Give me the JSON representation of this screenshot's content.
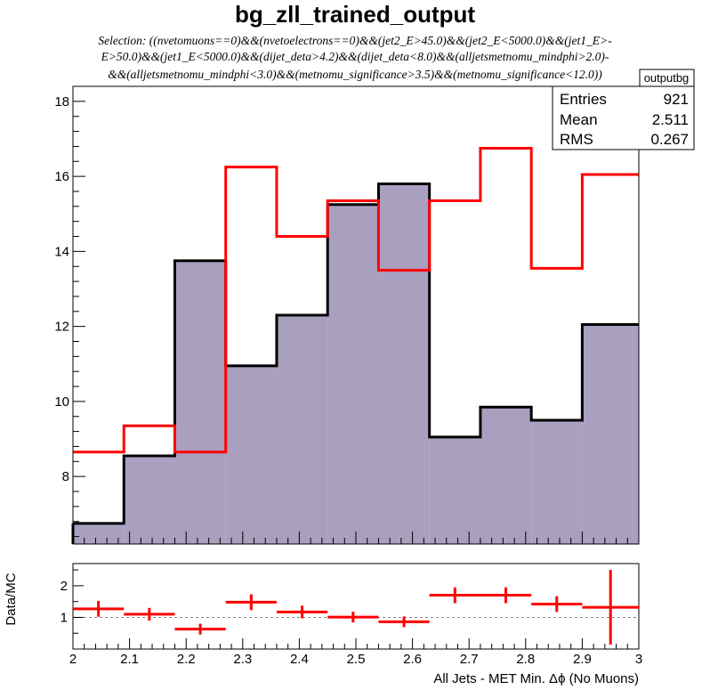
{
  "title": "bg_zll_trained_output",
  "selection": [
    "Selection: ((nvetomuons==0)&&(nvetoelectrons==0)&&(jet2_E>45.0)&&(jet2_E<5000.0)&&(jet1_E>-",
    "E>50.0)&&(jet1_E<5000.0)&&(dijet_deta>4.2)&&(dijet_deta<8.0)&&(alljetsmetnomu_mindphi>2.0)-",
    "&&(alljetsmetnomu_mindphi<3.0)&&(metnomu_significance>3.5)&&(metnomu_significance<12.0))"
  ],
  "stats_box": {
    "name": "outputbg",
    "rows": [
      {
        "label": "Entries",
        "value": "921"
      },
      {
        "label": "Mean",
        "value": "2.511"
      },
      {
        "label": "RMS",
        "value": "0.267"
      }
    ]
  },
  "ratio_ylabel": "Data/MC",
  "xlabel": "All Jets - MET Min. Δϕ (No Muons)",
  "colors": {
    "fill": "#a99fbf",
    "mc_line": "#000000",
    "data_line": "#ff0000",
    "ref_line": "#888888"
  },
  "chart_data": [
    {
      "type": "histogram",
      "panel": "main",
      "xlim": [
        2.0,
        3.0
      ],
      "ylim": [
        6.2,
        18.4
      ],
      "yticks": [
        8,
        10,
        12,
        14,
        16,
        18
      ],
      "bin_edges": [
        2.0,
        2.09,
        2.18,
        2.27,
        2.36,
        2.45,
        2.54,
        2.63,
        2.72,
        2.81,
        2.9,
        3.0
      ],
      "series": [
        {
          "values": [
            6.75,
            8.55,
            13.75,
            10.95,
            12.3,
            15.25,
            15.8,
            9.05,
            9.85,
            9.5,
            12.05
          ],
          "style": "filled"
        },
        {
          "values": [
            8.65,
            9.35,
            8.65,
            16.25,
            14.4,
            15.35,
            13.5,
            15.35,
            16.75,
            13.55,
            16.05
          ],
          "style": "line"
        }
      ]
    },
    {
      "type": "scatter",
      "panel": "ratio",
      "xlim": [
        2.0,
        3.0
      ],
      "ylim": [
        0,
        2.7
      ],
      "yticks": [
        1,
        2
      ],
      "xticks": [
        2,
        2.1,
        2.2,
        2.3,
        2.4,
        2.5,
        2.6,
        2.7,
        2.8,
        2.9,
        3
      ],
      "reference_line": 1,
      "points": [
        {
          "x": 2.045,
          "y": 1.27,
          "xerr": 0.045,
          "yerr": 0.25
        },
        {
          "x": 2.135,
          "y": 1.1,
          "xerr": 0.045,
          "yerr": 0.2
        },
        {
          "x": 2.225,
          "y": 0.63,
          "xerr": 0.045,
          "yerr": 0.17
        },
        {
          "x": 2.315,
          "y": 1.48,
          "xerr": 0.045,
          "yerr": 0.25
        },
        {
          "x": 2.405,
          "y": 1.17,
          "xerr": 0.045,
          "yerr": 0.2
        },
        {
          "x": 2.495,
          "y": 1.01,
          "xerr": 0.045,
          "yerr": 0.17
        },
        {
          "x": 2.585,
          "y": 0.86,
          "xerr": 0.045,
          "yerr": 0.17
        },
        {
          "x": 2.675,
          "y": 1.7,
          "xerr": 0.045,
          "yerr": 0.25
        },
        {
          "x": 2.765,
          "y": 1.7,
          "xerr": 0.045,
          "yerr": 0.25
        },
        {
          "x": 2.855,
          "y": 1.42,
          "xerr": 0.045,
          "yerr": 0.25
        },
        {
          "x": 2.95,
          "y": 1.32,
          "xerr": 0.05,
          "yerr": 1.18
        }
      ]
    }
  ]
}
